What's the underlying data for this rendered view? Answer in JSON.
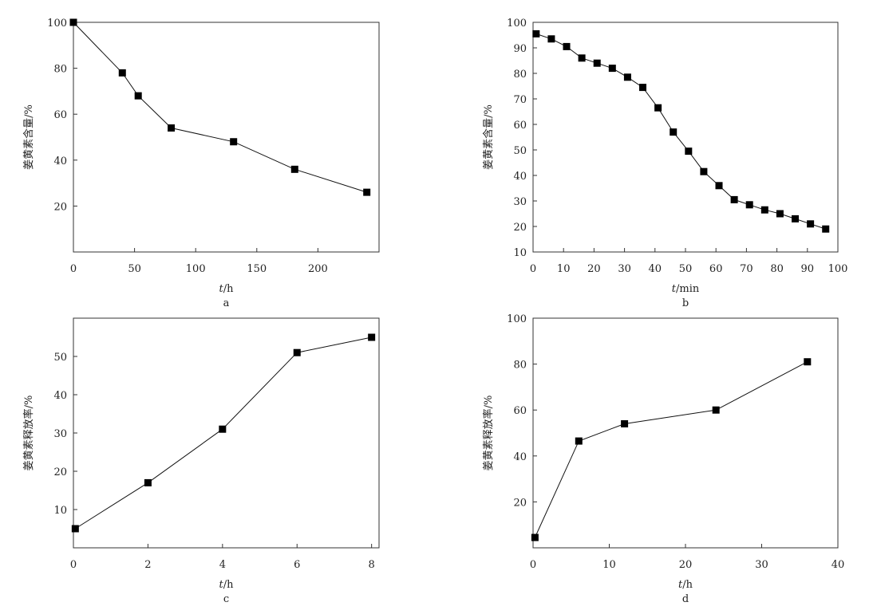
{
  "chart_data": [
    {
      "id": "a",
      "type": "line",
      "panel_label": "a",
      "xlabel_var": "t",
      "xlabel_unit": "/h",
      "ylabel": "姜黄素含量/%",
      "xlim": [
        0,
        250
      ],
      "ylim": [
        0,
        100
      ],
      "xticks": [
        0,
        50,
        100,
        150,
        200
      ],
      "yticks": [
        20,
        40,
        60,
        80,
        100
      ],
      "series": [
        {
          "x": [
            0,
            40,
            53,
            80,
            131,
            181,
            240
          ],
          "y": [
            100,
            78,
            68,
            54,
            48,
            36,
            26
          ]
        }
      ]
    },
    {
      "id": "b",
      "type": "line",
      "panel_label": "b",
      "xlabel_var": "t",
      "xlabel_unit": "/min",
      "ylabel": "姜黄素含量/%",
      "xlim": [
        0,
        100
      ],
      "ylim": [
        10,
        100
      ],
      "xticks": [
        0,
        10,
        20,
        30,
        40,
        50,
        60,
        70,
        80,
        90,
        100
      ],
      "yticks": [
        10,
        20,
        30,
        40,
        50,
        60,
        70,
        80,
        90,
        100
      ],
      "series": [
        {
          "x": [
            1,
            6,
            11,
            16,
            21,
            26,
            31,
            36,
            41,
            46,
            51,
            56,
            61,
            66,
            71,
            76,
            81,
            86,
            91,
            96
          ],
          "y": [
            95.5,
            93.5,
            90.5,
            86,
            84,
            82,
            78.5,
            74.5,
            66.5,
            57,
            49.5,
            41.5,
            36,
            30.5,
            28.5,
            26.5,
            25,
            23,
            21,
            19
          ]
        }
      ]
    },
    {
      "id": "c",
      "type": "line",
      "panel_label": "c",
      "xlabel_var": "t",
      "xlabel_unit": "/h",
      "ylabel": "姜黄素释放率/%",
      "xlim": [
        0,
        8.2
      ],
      "ylim": [
        0,
        60
      ],
      "xticks": [
        0,
        2,
        4,
        6,
        8
      ],
      "yticks": [
        10,
        20,
        30,
        40,
        50
      ],
      "series": [
        {
          "x": [
            0.05,
            2,
            4,
            6,
            8
          ],
          "y": [
            5,
            17,
            31,
            51,
            55
          ]
        }
      ]
    },
    {
      "id": "d",
      "type": "line",
      "panel_label": "d",
      "xlabel_var": "t",
      "xlabel_unit": "/h",
      "ylabel": "姜黄素释放率/%",
      "xlim": [
        0,
        40
      ],
      "ylim": [
        0,
        100
      ],
      "xticks": [
        0,
        10,
        20,
        30,
        40
      ],
      "yticks": [
        20,
        40,
        60,
        80,
        100
      ],
      "series": [
        {
          "x": [
            0.25,
            6,
            12,
            24,
            36
          ],
          "y": [
            4.5,
            46.5,
            54,
            60,
            81
          ]
        }
      ]
    }
  ]
}
